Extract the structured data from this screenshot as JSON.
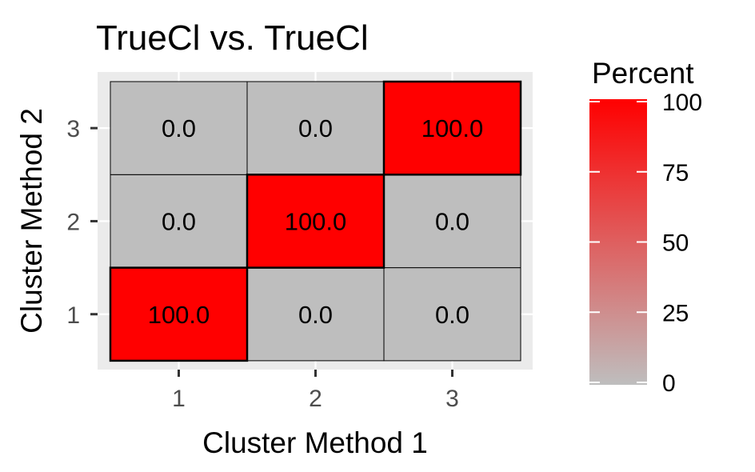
{
  "chart_data": {
    "type": "heatmap",
    "title": "TrueCl vs. TrueCl",
    "xlabel": "Cluster Method 1",
    "ylabel": "Cluster Method 2",
    "x_categories": [
      "1",
      "2",
      "3"
    ],
    "y_categories": [
      "1",
      "2",
      "3"
    ],
    "cells": [
      {
        "x": "1",
        "y": "1",
        "value": 100.0,
        "label": "100.0"
      },
      {
        "x": "2",
        "y": "1",
        "value": 0.0,
        "label": "0.0"
      },
      {
        "x": "3",
        "y": "1",
        "value": 0.0,
        "label": "0.0"
      },
      {
        "x": "1",
        "y": "2",
        "value": 0.0,
        "label": "0.0"
      },
      {
        "x": "2",
        "y": "2",
        "value": 100.0,
        "label": "100.0"
      },
      {
        "x": "3",
        "y": "2",
        "value": 0.0,
        "label": "0.0"
      },
      {
        "x": "1",
        "y": "3",
        "value": 0.0,
        "label": "0.0"
      },
      {
        "x": "2",
        "y": "3",
        "value": 0.0,
        "label": "0.0"
      },
      {
        "x": "3",
        "y": "3",
        "value": 100.0,
        "label": "100.0"
      }
    ],
    "legend": {
      "title": "Percent",
      "ticks": [
        "0",
        "25",
        "50",
        "75",
        "100"
      ],
      "range": [
        0,
        100
      ],
      "low_color": "#BEBEBE",
      "high_color": "#FF0000",
      "position": "right"
    },
    "panel_background": "#EBEBEB",
    "grid": true
  }
}
